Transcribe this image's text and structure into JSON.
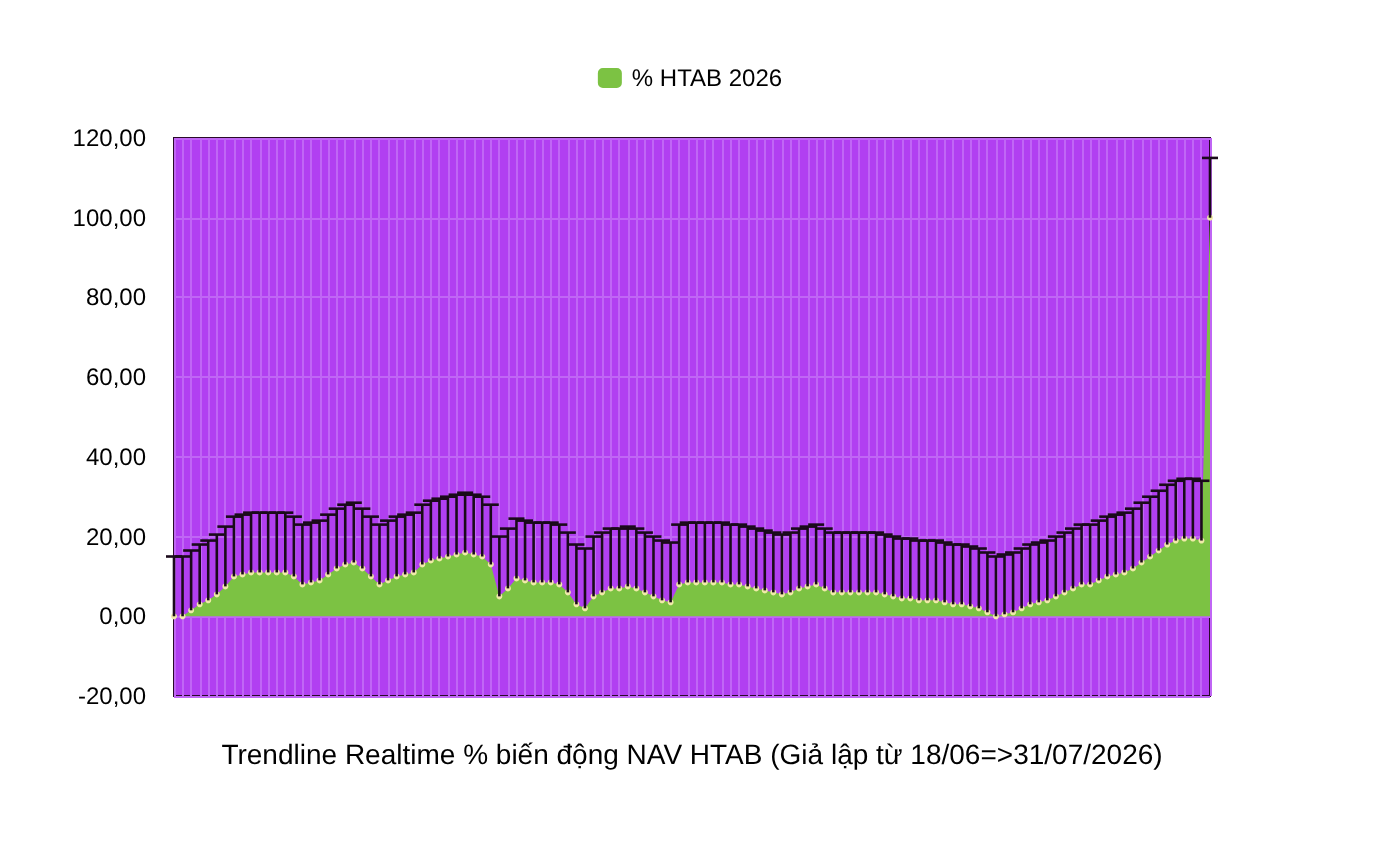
{
  "chart_data": {
    "type": "area",
    "xlabel": "Trendline Realtime % biến động NAV HTAB (Giả lập từ 18/06=>31/07/2026)",
    "categories": [
      null,
      null,
      null,
      null,
      null,
      null,
      null,
      null,
      null,
      null,
      null,
      null,
      null,
      null,
      null,
      null,
      null,
      null,
      null,
      null,
      null,
      null,
      null,
      null,
      null,
      null,
      null,
      null,
      null,
      null,
      null,
      null,
      null,
      null,
      null,
      null,
      null,
      null,
      null,
      null,
      null,
      null,
      null,
      null,
      null,
      null,
      null,
      null,
      null,
      null,
      null,
      null,
      null,
      null,
      null,
      null,
      null,
      null,
      null,
      null,
      null,
      null,
      null,
      null,
      null,
      null,
      null,
      null,
      null,
      null,
      null,
      null,
      null,
      null,
      null,
      null,
      null,
      null,
      null,
      null,
      null,
      null,
      null,
      null,
      null,
      null,
      null,
      null,
      null,
      null,
      null,
      null,
      null,
      null,
      null,
      null,
      null,
      null,
      null,
      null,
      null,
      null,
      null,
      null,
      null,
      null,
      null,
      null,
      null,
      null,
      null,
      null,
      null,
      null,
      null,
      null,
      null,
      null,
      null,
      null,
      null,
      null
    ],
    "series": [
      {
        "name": "% HTAB 2026",
        "color": "#7cc243",
        "values": [
          0,
          0,
          1.5,
          3,
          4,
          5.5,
          7.5,
          10,
          10.5,
          11,
          11,
          11,
          11,
          11,
          10,
          8,
          8.5,
          9,
          10.5,
          12,
          13,
          13.5,
          12,
          10,
          8,
          9,
          10,
          10.5,
          11,
          13,
          14,
          14.5,
          15,
          15.5,
          16,
          15.5,
          15,
          13,
          5,
          7,
          9.5,
          9,
          8.5,
          8.5,
          8.5,
          8,
          6,
          3,
          2,
          5,
          6,
          7,
          7,
          7.5,
          7,
          6,
          5,
          4,
          3.5,
          8,
          8.5,
          8.5,
          8.5,
          8.5,
          8.5,
          8,
          8,
          7.5,
          7,
          6.5,
          6,
          5.5,
          6,
          7,
          7.5,
          8,
          7,
          6,
          6,
          6,
          6,
          6,
          6,
          5.5,
          5,
          4.5,
          4.5,
          4,
          4,
          4,
          3.5,
          3,
          3,
          2.5,
          2,
          1,
          0,
          0.5,
          1,
          2,
          3,
          3.5,
          4,
          5,
          6,
          7,
          8,
          8,
          9,
          10,
          10.5,
          11,
          12,
          13.5,
          15,
          16.5,
          18,
          19,
          19.5,
          19.5,
          19,
          100
        ],
        "errors": [
          [
            0,
            15
          ],
          [
            0,
            15
          ],
          [
            1.5,
            16.5
          ],
          [
            3,
            18
          ],
          [
            4,
            19
          ],
          [
            5.5,
            20.5
          ],
          [
            7.5,
            22.5
          ],
          [
            10,
            25
          ],
          [
            10.5,
            25.5
          ],
          [
            11,
            26
          ],
          [
            11,
            26
          ],
          [
            11,
            26
          ],
          [
            11,
            26
          ],
          [
            11,
            26
          ],
          [
            10,
            25
          ],
          [
            8,
            23
          ],
          [
            8.5,
            23.5
          ],
          [
            9,
            24
          ],
          [
            10.5,
            25.5
          ],
          [
            12,
            27
          ],
          [
            13,
            28
          ],
          [
            13.5,
            28.5
          ],
          [
            12,
            27
          ],
          [
            10,
            25
          ],
          [
            8,
            23
          ],
          [
            9,
            24
          ],
          [
            10,
            25
          ],
          [
            10.5,
            25.5
          ],
          [
            11,
            26
          ],
          [
            13,
            28
          ],
          [
            14,
            29
          ],
          [
            14.5,
            29.5
          ],
          [
            15,
            30
          ],
          [
            15.5,
            30.5
          ],
          [
            16,
            31
          ],
          [
            15.5,
            30.5
          ],
          [
            15,
            30
          ],
          [
            13,
            28
          ],
          [
            5,
            20
          ],
          [
            7,
            22
          ],
          [
            9.5,
            24.5
          ],
          [
            9,
            24
          ],
          [
            8.5,
            23.5
          ],
          [
            8.5,
            23.5
          ],
          [
            8.5,
            23.5
          ],
          [
            8,
            23
          ],
          [
            6,
            21
          ],
          [
            3,
            18
          ],
          [
            2,
            17
          ],
          [
            5,
            20
          ],
          [
            6,
            21
          ],
          [
            7,
            22
          ],
          [
            7,
            22
          ],
          [
            7.5,
            22.5
          ],
          [
            7,
            22
          ],
          [
            6,
            21
          ],
          [
            5,
            20
          ],
          [
            4,
            19
          ],
          [
            3.5,
            18.5
          ],
          [
            8,
            23
          ],
          [
            8.5,
            23.5
          ],
          [
            8.5,
            23.5
          ],
          [
            8.5,
            23.5
          ],
          [
            8.5,
            23.5
          ],
          [
            8.5,
            23.5
          ],
          [
            8,
            23
          ],
          [
            8,
            23
          ],
          [
            7.5,
            22.5
          ],
          [
            7,
            22
          ],
          [
            6.5,
            21.5
          ],
          [
            6,
            21
          ],
          [
            5.5,
            20.5
          ],
          [
            6,
            21
          ],
          [
            7,
            22
          ],
          [
            7.5,
            22.5
          ],
          [
            8,
            23
          ],
          [
            7,
            22
          ],
          [
            6,
            21
          ],
          [
            6,
            21
          ],
          [
            6,
            21
          ],
          [
            6,
            21
          ],
          [
            6,
            21
          ],
          [
            6,
            21
          ],
          [
            5.5,
            20.5
          ],
          [
            5,
            20
          ],
          [
            4.5,
            19.5
          ],
          [
            4.5,
            19.5
          ],
          [
            4,
            19
          ],
          [
            4,
            19
          ],
          [
            4,
            19
          ],
          [
            3.5,
            18.5
          ],
          [
            3,
            18
          ],
          [
            3,
            18
          ],
          [
            2.5,
            17.5
          ],
          [
            2,
            17
          ],
          [
            1,
            16
          ],
          [
            0,
            15
          ],
          [
            0.5,
            15.5
          ],
          [
            1,
            16
          ],
          [
            2,
            17
          ],
          [
            3,
            18
          ],
          [
            3.5,
            18.5
          ],
          [
            4,
            19
          ],
          [
            5,
            20
          ],
          [
            6,
            21
          ],
          [
            7,
            22
          ],
          [
            8,
            23
          ],
          [
            8,
            23
          ],
          [
            9,
            24
          ],
          [
            10,
            25
          ],
          [
            10.5,
            25.5
          ],
          [
            11,
            26
          ],
          [
            12,
            27
          ],
          [
            13.5,
            28.5
          ],
          [
            15,
            30
          ],
          [
            16.5,
            31.5
          ],
          [
            18,
            33
          ],
          [
            19,
            34
          ],
          [
            19.5,
            34.5
          ],
          [
            19.5,
            34.5
          ],
          [
            19,
            34
          ],
          [
            100,
            115
          ]
        ]
      }
    ],
    "ylim": [
      -20,
      120
    ],
    "yticks": [
      {
        "value": -20,
        "label": "-20,00"
      },
      {
        "value": 0,
        "label": "0,00"
      },
      {
        "value": 20,
        "label": "20,00"
      },
      {
        "value": 40,
        "label": "40,00"
      },
      {
        "value": 60,
        "label": "60,00"
      },
      {
        "value": 80,
        "label": "80,00"
      },
      {
        "value": 100,
        "label": "100,00"
      },
      {
        "value": 120,
        "label": "120,00"
      }
    ],
    "grid": true,
    "legend": "top",
    "marker": "circle"
  }
}
